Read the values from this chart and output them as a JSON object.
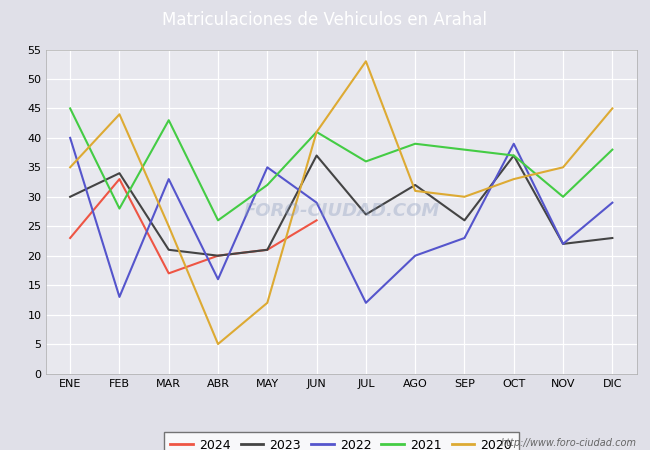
{
  "title": "Matriculaciones de Vehiculos en Arahal",
  "title_color": "#ffffff",
  "title_bg": "#4488cc",
  "months": [
    "ENE",
    "FEB",
    "MAR",
    "ABR",
    "MAY",
    "JUN",
    "JUL",
    "AGO",
    "SEP",
    "OCT",
    "NOV",
    "DIC"
  ],
  "series": {
    "2024": {
      "color": "#ee5544",
      "data": [
        23,
        33,
        17,
        20,
        21,
        26,
        null,
        null,
        null,
        null,
        null,
        null
      ]
    },
    "2023": {
      "color": "#444444",
      "data": [
        30,
        34,
        21,
        20,
        21,
        37,
        27,
        32,
        26,
        37,
        22,
        23
      ]
    },
    "2022": {
      "color": "#5555cc",
      "data": [
        40,
        13,
        33,
        16,
        35,
        29,
        12,
        20,
        23,
        39,
        22,
        29
      ]
    },
    "2021": {
      "color": "#44cc44",
      "data": [
        45,
        28,
        43,
        26,
        32,
        41,
        36,
        39,
        38,
        37,
        30,
        38
      ]
    },
    "2020": {
      "color": "#ddaa33",
      "data": [
        35,
        44,
        25,
        5,
        12,
        41,
        53,
        31,
        30,
        33,
        35,
        45
      ]
    }
  },
  "ylim": [
    0,
    55
  ],
  "yticks": [
    0,
    5,
    10,
    15,
    20,
    25,
    30,
    35,
    40,
    45,
    50,
    55
  ],
  "fig_bg": "#e0e0e8",
  "plot_bg": "#e8e8ee",
  "watermark": "http://www.foro-ciudad.com",
  "grid_color": "#ffffff",
  "legend_order": [
    "2024",
    "2023",
    "2022",
    "2021",
    "2020"
  ]
}
